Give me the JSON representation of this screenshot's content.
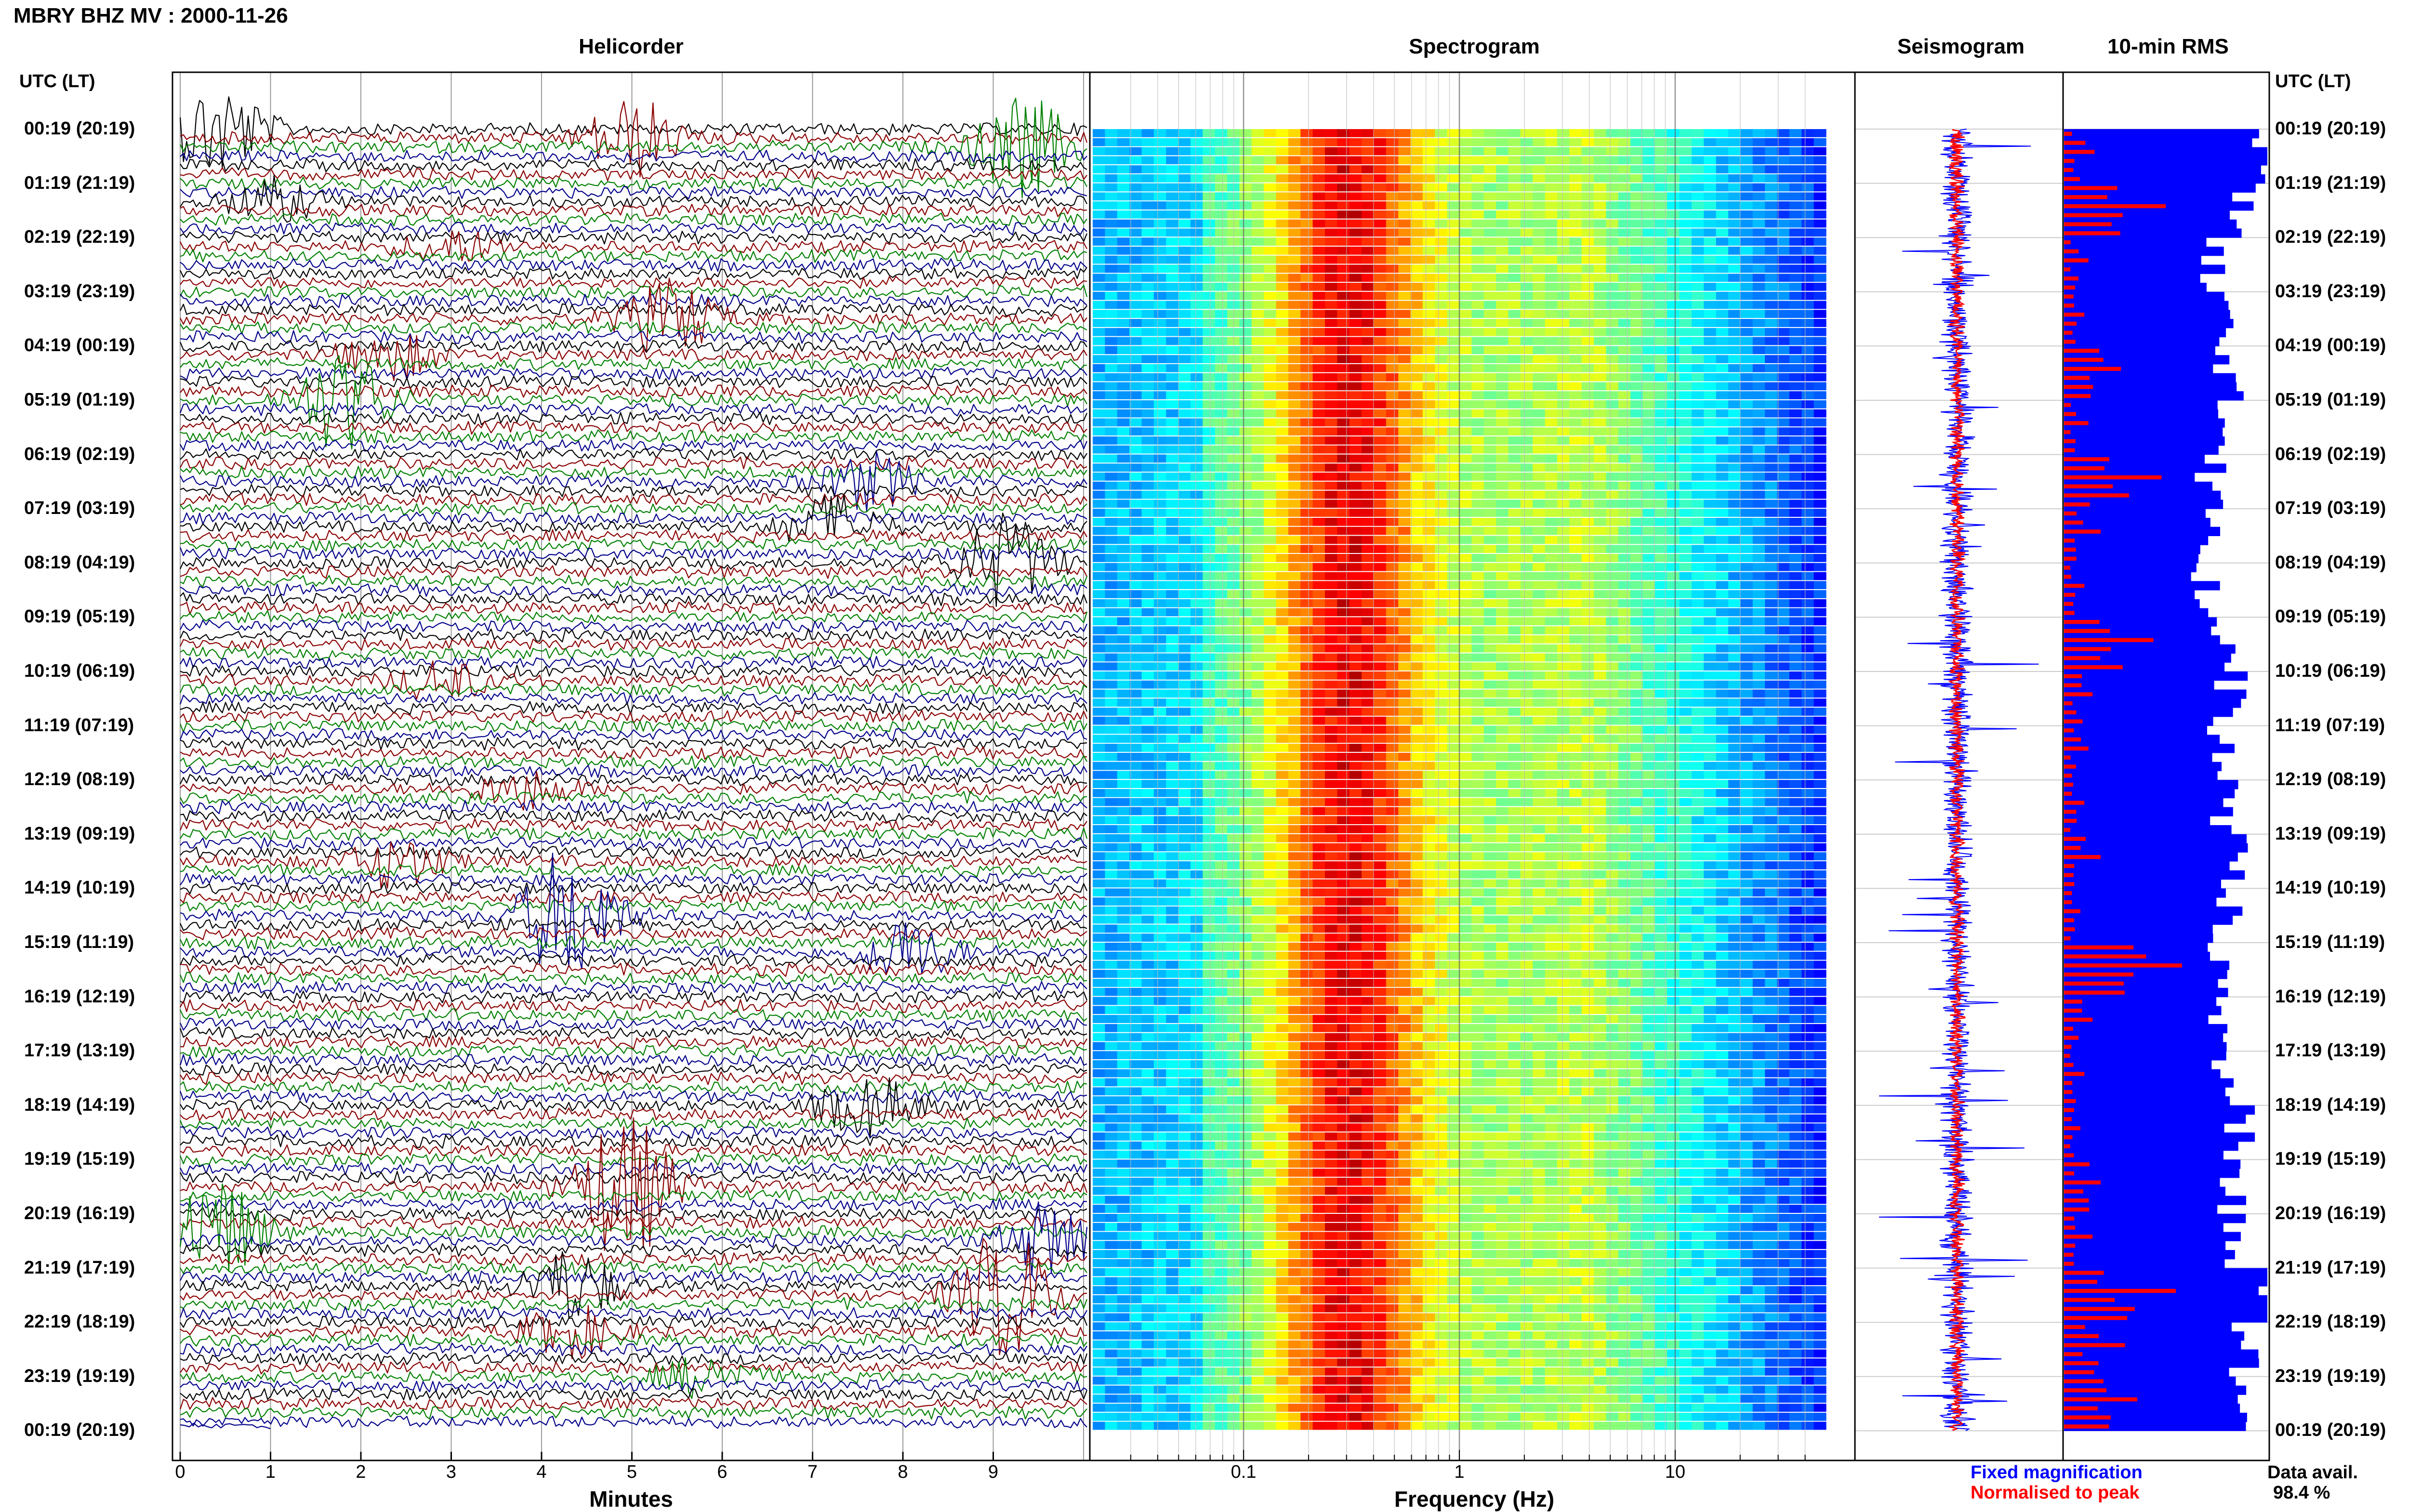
{
  "header": {
    "title": "MBRY BHZ MV : 2000-11-26"
  },
  "panels": {
    "helicorder": "Helicorder",
    "spectrogram": "Spectrogram",
    "seismogram": "Seismogram",
    "rms": "10-min RMS"
  },
  "time_axis_label": "UTC (LT)",
  "time_labels": [
    "00:19 (20:19)",
    "01:19 (21:19)",
    "02:19 (22:19)",
    "03:19 (23:19)",
    "04:19 (00:19)",
    "05:19 (01:19)",
    "06:19 (02:19)",
    "07:19 (03:19)",
    "08:19 (04:19)",
    "09:19 (05:19)",
    "10:19 (06:19)",
    "11:19 (07:19)",
    "12:19 (08:19)",
    "13:19 (09:19)",
    "14:19 (10:19)",
    "15:19 (11:19)",
    "16:19 (12:19)",
    "17:19 (13:19)",
    "18:19 (14:19)",
    "19:19 (15:19)",
    "20:19 (16:19)",
    "21:19 (17:19)",
    "22:19 (18:19)",
    "23:19 (19:19)",
    "00:19 (20:19)"
  ],
  "helicorder_axis": {
    "label": "Minutes",
    "ticks": [
      "0",
      "1",
      "2",
      "3",
      "4",
      "5",
      "6",
      "7",
      "8",
      "9"
    ]
  },
  "spectrogram_axis": {
    "label": "Frequency (Hz)",
    "ticks": [
      "0.1",
      "1",
      "10"
    ],
    "scale": "log"
  },
  "legend": {
    "fixed": "Fixed magnification",
    "normalised": "Normalised to peak",
    "fixed_color": "#0000ff",
    "normalised_color": "#ff0000"
  },
  "data_avail": {
    "label": "Data avail.",
    "value": "98.4 %"
  },
  "colors": {
    "trace_cycle": [
      "#000000",
      "#8b0000",
      "#008000",
      "#00008b"
    ],
    "rms_fixed": "#0000ff",
    "rms_normalised": "#ff0000",
    "seismo_fixed": "#0000ff",
    "seismo_norm": "#ff0000"
  },
  "chart_data": [
    {
      "type": "line",
      "title": "Helicorder",
      "xlabel": "Minutes",
      "xlim": [
        0,
        10
      ],
      "traces_per_hour": 6,
      "hours": 24,
      "events": [
        {
          "hour": 0,
          "trace": 0,
          "minute": 0.4,
          "amp": 3.0
        },
        {
          "hour": 0,
          "trace": 1,
          "minute": 5.0,
          "amp": 2.4
        },
        {
          "hour": 0,
          "trace": 2,
          "minute": 9.3,
          "amp": 3.2
        },
        {
          "hour": 1,
          "trace": 2,
          "minute": 1.0,
          "amp": 1.3
        },
        {
          "hour": 2,
          "trace": 1,
          "minute": 3.0,
          "amp": 1.0
        },
        {
          "hour": 3,
          "trace": 3,
          "minute": 5.4,
          "amp": 2.4
        },
        {
          "hour": 4,
          "trace": 1,
          "minute": 2.3,
          "amp": 1.5
        },
        {
          "hour": 5,
          "trace": 0,
          "minute": 1.8,
          "amp": 3.2
        },
        {
          "hour": 6,
          "trace": 3,
          "minute": 7.6,
          "amp": 1.7
        },
        {
          "hour": 7,
          "trace": 2,
          "minute": 7.2,
          "amp": 1.9
        },
        {
          "hour": 8,
          "trace": 0,
          "minute": 9.1,
          "amp": 3.0
        },
        {
          "hour": 10,
          "trace": 1,
          "minute": 2.9,
          "amp": 1.2
        },
        {
          "hour": 12,
          "trace": 1,
          "minute": 3.8,
          "amp": 1.2
        },
        {
          "hour": 13,
          "trace": 3,
          "minute": 2.4,
          "amp": 1.6
        },
        {
          "hour": 14,
          "trace": 3,
          "minute": 4.3,
          "amp": 4.4
        },
        {
          "hour": 15,
          "trace": 1,
          "minute": 8.0,
          "amp": 2.0
        },
        {
          "hour": 18,
          "trace": 0,
          "minute": 7.6,
          "amp": 1.9
        },
        {
          "hour": 19,
          "trace": 3,
          "minute": 4.9,
          "amp": 4.8
        },
        {
          "hour": 20,
          "trace": 2,
          "minute": 0.4,
          "amp": 3.4
        },
        {
          "hour": 20,
          "trace": 3,
          "minute": 9.6,
          "amp": 2.4
        },
        {
          "hour": 21,
          "trace": 2,
          "minute": 4.3,
          "amp": 2.3
        },
        {
          "hour": 21,
          "trace": 3,
          "minute": 9.1,
          "amp": 4.3
        },
        {
          "hour": 22,
          "trace": 1,
          "minute": 4.3,
          "amp": 1.6
        },
        {
          "hour": 23,
          "trace": 0,
          "minute": 5.8,
          "amp": 1.2
        }
      ]
    },
    {
      "type": "heatmap",
      "title": "Spectrogram",
      "xlabel": "Frequency (Hz)",
      "x_scale": "log",
      "xlim": [
        0.02,
        50
      ],
      "colormap": "jet",
      "peak_band_hz": [
        0.2,
        0.5
      ]
    },
    {
      "type": "bar",
      "title": "10-min RMS",
      "series": [
        {
          "name": "Fixed magnification",
          "values_per_hour": [
            0.98,
            0.86,
            0.71,
            0.77,
            0.82,
            0.8,
            0.72,
            0.75,
            0.69,
            0.79,
            0.82,
            0.75,
            0.8,
            0.82,
            0.79,
            0.78,
            0.74,
            0.81,
            0.86,
            0.84,
            0.87,
            0.99,
            0.88,
            0.84
          ]
        },
        {
          "name": "Normalised to peak",
          "values_per_hour": [
            0.15,
            0.5,
            0.12,
            0.1,
            0.28,
            0.12,
            0.48,
            0.18,
            0.1,
            0.44,
            0.14,
            0.12,
            0.1,
            0.18,
            0.08,
            0.58,
            0.14,
            0.1,
            0.08,
            0.18,
            0.14,
            0.55,
            0.3,
            0.36
          ]
        }
      ]
    }
  ]
}
